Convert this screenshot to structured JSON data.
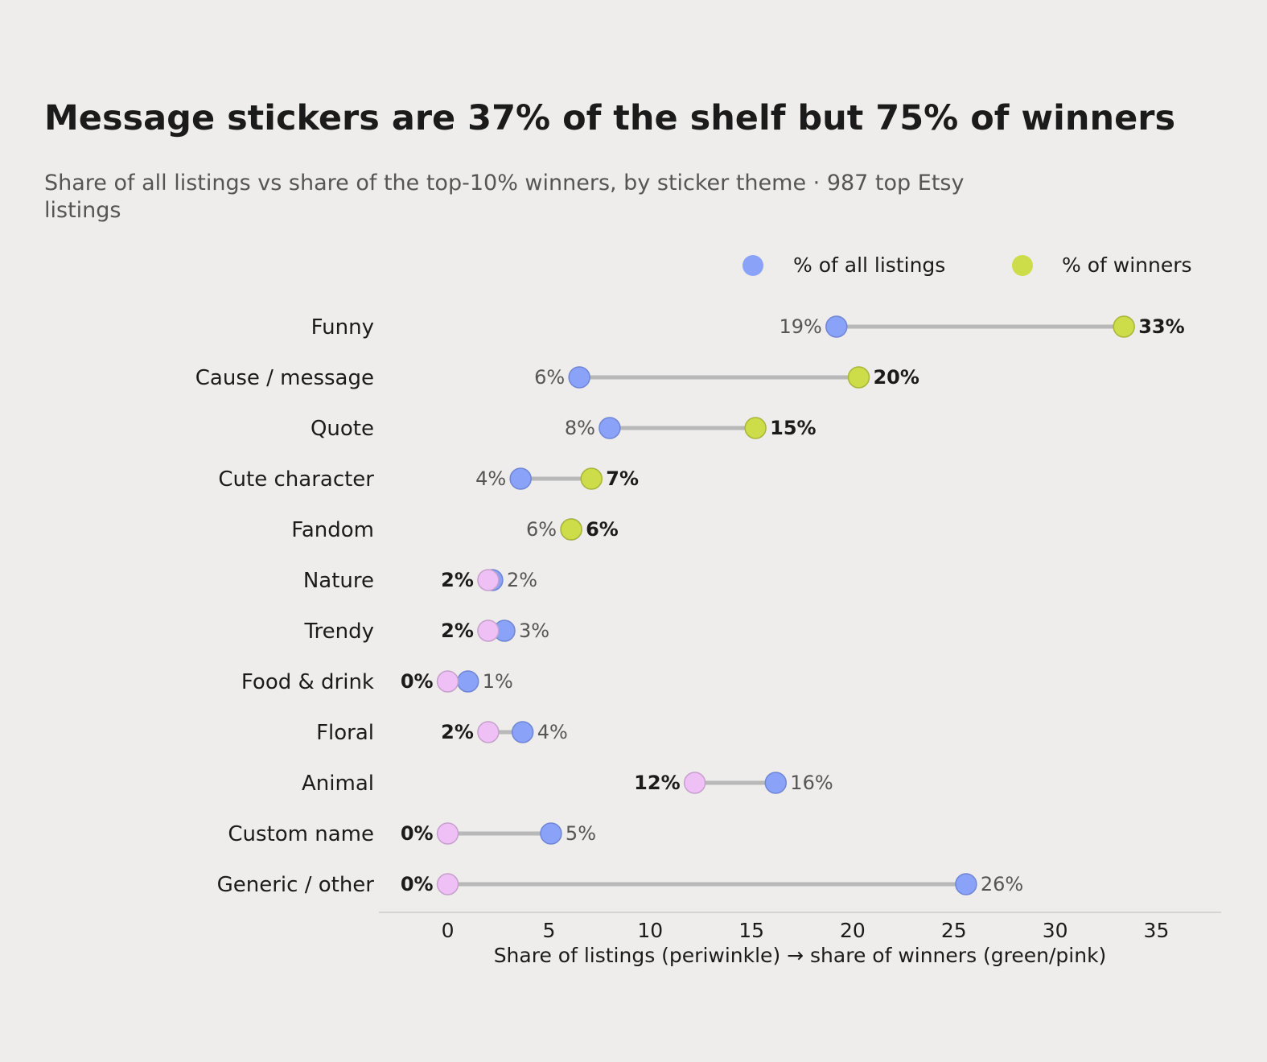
{
  "chart_data": {
    "type": "dumbbell",
    "title": "Message stickers are 37% of the shelf but 75% of winners",
    "subtitle": "Share of all listings vs share of the top-10% winners, by sticker theme · 987 top Etsy listings",
    "xlabel": "Share of listings (periwinkle)  →  share of winners (green/pink)",
    "xlim": [
      -3.4,
      38.2
    ],
    "xticks": [
      0,
      5,
      10,
      15,
      20,
      25,
      30,
      35
    ],
    "legend": {
      "placement": "top-right",
      "entries": [
        {
          "label": "% of all listings",
          "color": "#8aa2f7"
        },
        {
          "label": "% of winners",
          "color": "#cddc49"
        }
      ]
    },
    "colors": {
      "all_listings": "#8aa2f7",
      "winners_over": "#cddc49",
      "winners_under": "#efc0f5",
      "connector": "#b8b8b8"
    },
    "rows": [
      {
        "category": "Funny",
        "all": 19.2,
        "winners": 33.4,
        "all_label": "19%",
        "winners_label": "33%"
      },
      {
        "category": "Cause / message",
        "all": 6.5,
        "winners": 20.3,
        "all_label": "6%",
        "winners_label": "20%"
      },
      {
        "category": "Quote",
        "all": 8.0,
        "winners": 15.2,
        "all_label": "8%",
        "winners_label": "15%"
      },
      {
        "category": "Cute character",
        "all": 3.6,
        "winners": 7.1,
        "all_label": "4%",
        "winners_label": "7%"
      },
      {
        "category": "Fandom",
        "all": 6.1,
        "winners": 6.1,
        "all_label": "6%",
        "winners_label": "6%"
      },
      {
        "category": "Nature",
        "all": 2.2,
        "winners": 2.0,
        "all_label": "2%",
        "winners_label": "2%"
      },
      {
        "category": "Trendy",
        "all": 2.8,
        "winners": 2.0,
        "all_label": "3%",
        "winners_label": "2%"
      },
      {
        "category": "Food & drink",
        "all": 1.0,
        "winners": 0.0,
        "all_label": "1%",
        "winners_label": "0%"
      },
      {
        "category": "Floral",
        "all": 3.7,
        "winners": 2.0,
        "all_label": "4%",
        "winners_label": "2%"
      },
      {
        "category": "Animal",
        "all": 16.2,
        "winners": 12.2,
        "all_label": "16%",
        "winners_label": "12%"
      },
      {
        "category": "Custom name",
        "all": 5.1,
        "winners": 0.0,
        "all_label": "5%",
        "winners_label": "0%"
      },
      {
        "category": "Generic / other",
        "all": 25.6,
        "winners": 0.0,
        "all_label": "26%",
        "winners_label": "0%"
      }
    ]
  }
}
